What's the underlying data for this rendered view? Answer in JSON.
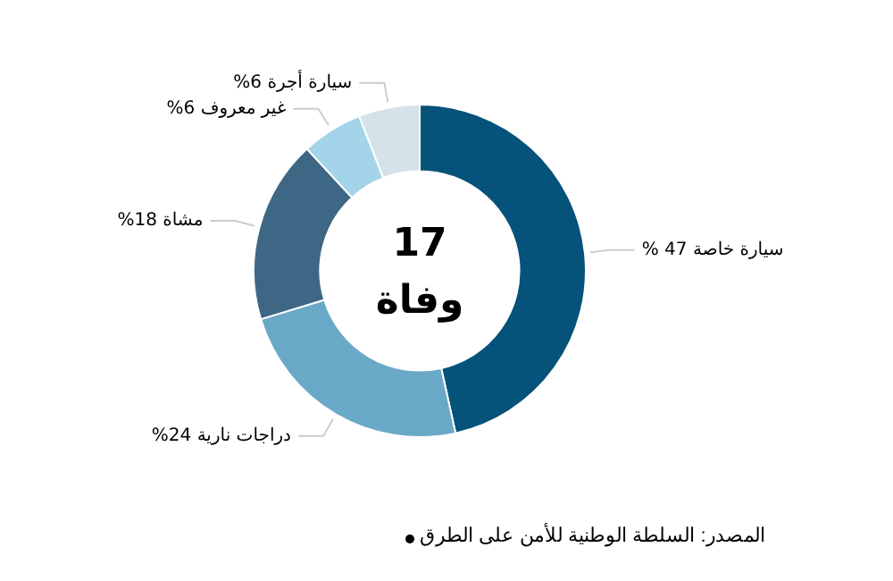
{
  "chart_data": {
    "type": "donut",
    "categories": [
      "سيارة خاصة",
      "دراجات نارية",
      "مشاة",
      "غير معروف",
      "سيارة أجرة"
    ],
    "values": [
      47,
      24,
      18,
      6,
      6
    ],
    "value_labels": [
      "47 %",
      "24%",
      "18%",
      "6%",
      "6%"
    ],
    "colors": [
      "#05527a",
      "#6aa8c8",
      "#3e6786",
      "#a3d4ea",
      "#d6e2ea"
    ],
    "annotations": [
      "17",
      "وفاة",
      "المصدر: السلطة الوطنية للأمن على الطرق"
    ],
    "legend": false
  }
}
